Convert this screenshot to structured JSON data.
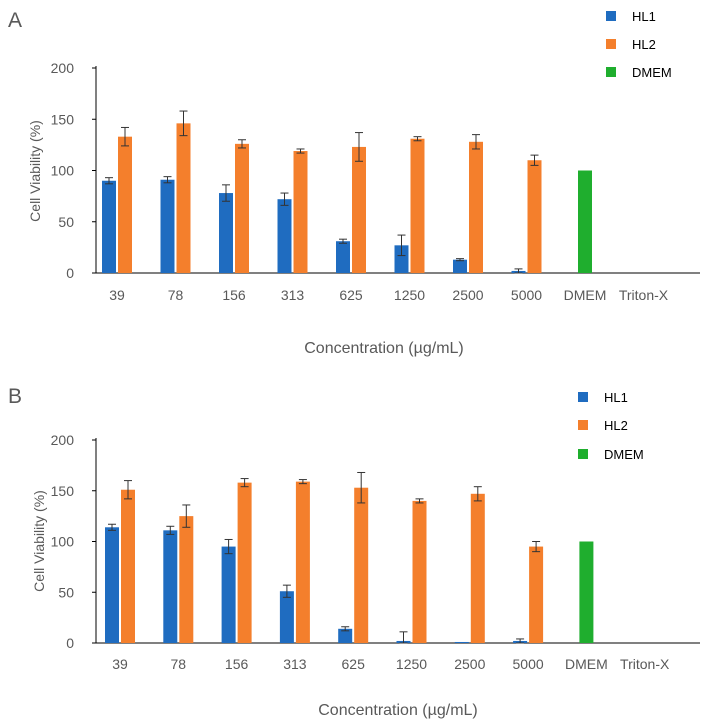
{
  "chart_data": [
    {
      "panel": "A",
      "type": "bar",
      "xlabel": "Concentration (µg/mL)",
      "ylabel": "Cell Viability (%)",
      "ylim": [
        0,
        200
      ],
      "yticks": [
        0,
        50,
        100,
        150,
        200
      ],
      "categories": [
        "39",
        "78",
        "156",
        "313",
        "625",
        "1250",
        "2500",
        "5000",
        "DMEM",
        "Triton-X"
      ],
      "series": [
        {
          "name": "HL1",
          "color": "#1f6cc0",
          "values": [
            90,
            91,
            78,
            72,
            31,
            27,
            13,
            2,
            null,
            null
          ],
          "errors": [
            3,
            3,
            8,
            6,
            2,
            10,
            1,
            2,
            null,
            null
          ]
        },
        {
          "name": "HL2",
          "color": "#f47f2c",
          "values": [
            133,
            146,
            126,
            119,
            123,
            131,
            128,
            110,
            null,
            null
          ],
          "errors": [
            9,
            12,
            4,
            2,
            14,
            2,
            7,
            5,
            null,
            null
          ]
        },
        {
          "name": "DMEM",
          "color": "#1fae2e",
          "values": [
            null,
            null,
            null,
            null,
            null,
            null,
            null,
            null,
            100,
            null
          ],
          "errors": [
            null,
            null,
            null,
            null,
            null,
            null,
            null,
            null,
            null,
            null
          ]
        }
      ],
      "legend": [
        "HL1",
        "HL2",
        "DMEM"
      ],
      "legend_position": "top-right"
    },
    {
      "panel": "B",
      "type": "bar",
      "xlabel": "Concentration (µg/mL)",
      "ylabel": "Cell Viability (%)",
      "ylim": [
        0,
        200
      ],
      "yticks": [
        0,
        50,
        100,
        150,
        200
      ],
      "categories": [
        "39",
        "78",
        "156",
        "313",
        "625",
        "1250",
        "2500",
        "5000",
        "DMEM",
        "Triton-X"
      ],
      "series": [
        {
          "name": "HL1",
          "color": "#1f6cc0",
          "values": [
            114,
            111,
            95,
            51,
            14,
            2,
            1,
            2,
            null,
            null
          ],
          "errors": [
            3,
            4,
            7,
            6,
            2,
            9,
            0,
            2,
            null,
            null
          ]
        },
        {
          "name": "HL2",
          "color": "#f47f2c",
          "values": [
            151,
            125,
            158,
            159,
            153,
            140,
            147,
            95,
            null,
            null
          ],
          "errors": [
            9,
            11,
            4,
            2,
            15,
            2,
            7,
            5,
            null,
            null
          ]
        },
        {
          "name": "DMEM",
          "color": "#1fae2e",
          "values": [
            null,
            null,
            null,
            null,
            null,
            null,
            null,
            null,
            100,
            null
          ],
          "errors": [
            null,
            null,
            null,
            null,
            null,
            null,
            null,
            null,
            null,
            null
          ]
        }
      ],
      "legend": [
        "HL1",
        "HL2",
        "DMEM"
      ],
      "legend_position": "top-right"
    }
  ]
}
